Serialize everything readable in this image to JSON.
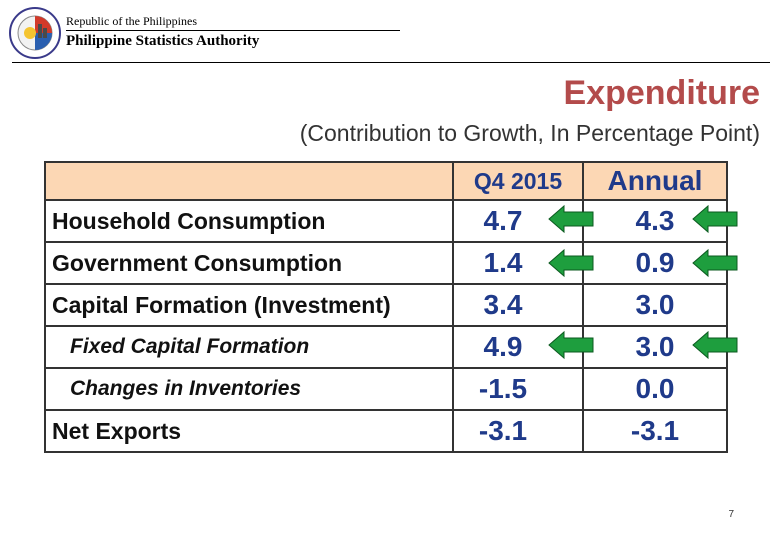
{
  "header": {
    "republic": "Republic of the Philippines",
    "agency": "Philippine Statistics Authority"
  },
  "title": "Expenditure",
  "subtitle": "(Contribution to Growth, In Percentage Point)",
  "table": {
    "columns": [
      "Q4 2015",
      "Annual"
    ],
    "rows": [
      {
        "label": "Household Consumption",
        "q4_2015": "4.7",
        "annual": "4.3"
      },
      {
        "label": "Government Consumption",
        "q4_2015": "1.4",
        "annual": "0.9"
      },
      {
        "label": "Capital Formation (Investment)",
        "q4_2015": "3.4",
        "annual": "3.0"
      },
      {
        "label": "Fixed Capital Formation",
        "q4_2015": "4.9",
        "annual": "3.0"
      },
      {
        "label": "Changes in Inventories",
        "q4_2015": "-1.5",
        "annual": "0.0"
      },
      {
        "label": "Net Exports",
        "q4_2015": "-3.1",
        "annual": "-3.1"
      }
    ]
  },
  "arrows": {
    "direction": "left",
    "color": "#1e9e3e"
  },
  "page_number": "7",
  "colors": {
    "title": "#b34b4b",
    "values": "#1f3a8a",
    "header_fill": "#fcd7b4"
  }
}
